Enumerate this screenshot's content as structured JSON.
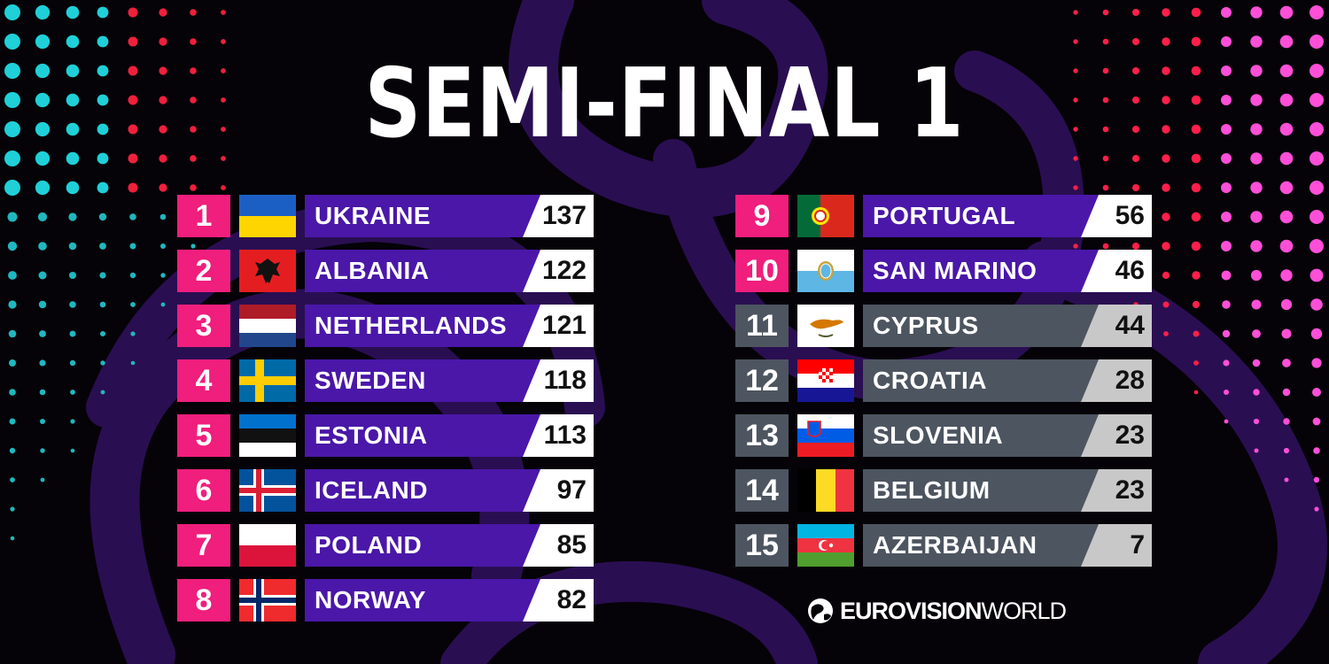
{
  "title": "SEMI-FINAL 1",
  "colors": {
    "qualified_rank": "#f01e7c",
    "qualified_bar": "#4a17a8",
    "non_qualified": "#4d5560",
    "points_qualified_box": "#ffffff",
    "points_non_qualified_box": "#c8c8c8"
  },
  "results": [
    {
      "rank": "1",
      "country": "UKRAINE",
      "points": "137",
      "flag": "ukraine",
      "qualified": true
    },
    {
      "rank": "2",
      "country": "ALBANIA",
      "points": "122",
      "flag": "albania",
      "qualified": true
    },
    {
      "rank": "3",
      "country": "NETHERLANDS",
      "points": "121",
      "flag": "netherlands",
      "qualified": true
    },
    {
      "rank": "4",
      "country": "SWEDEN",
      "points": "118",
      "flag": "sweden",
      "qualified": true
    },
    {
      "rank": "5",
      "country": "ESTONIA",
      "points": "113",
      "flag": "estonia",
      "qualified": true
    },
    {
      "rank": "6",
      "country": "ICELAND",
      "points": "97",
      "flag": "iceland",
      "qualified": true
    },
    {
      "rank": "7",
      "country": "POLAND",
      "points": "85",
      "flag": "poland",
      "qualified": true
    },
    {
      "rank": "8",
      "country": "NORWAY",
      "points": "82",
      "flag": "norway",
      "qualified": true
    },
    {
      "rank": "9",
      "country": "PORTUGAL",
      "points": "56",
      "flag": "portugal",
      "qualified": true
    },
    {
      "rank": "10",
      "country": "SAN MARINO",
      "points": "46",
      "flag": "san-marino",
      "qualified": true
    },
    {
      "rank": "11",
      "country": "CYPRUS",
      "points": "44",
      "flag": "cyprus",
      "qualified": false
    },
    {
      "rank": "12",
      "country": "CROATIA",
      "points": "28",
      "flag": "croatia",
      "qualified": false
    },
    {
      "rank": "13",
      "country": "SLOVENIA",
      "points": "23",
      "flag": "slovenia",
      "qualified": false
    },
    {
      "rank": "14",
      "country": "BELGIUM",
      "points": "23",
      "flag": "belgium",
      "qualified": false
    },
    {
      "rank": "15",
      "country": "AZERBAIJAN",
      "points": "7",
      "flag": "azerbaijan",
      "qualified": false
    }
  ],
  "logo": {
    "bold": "EUROVISION",
    "light": "WORLD"
  }
}
